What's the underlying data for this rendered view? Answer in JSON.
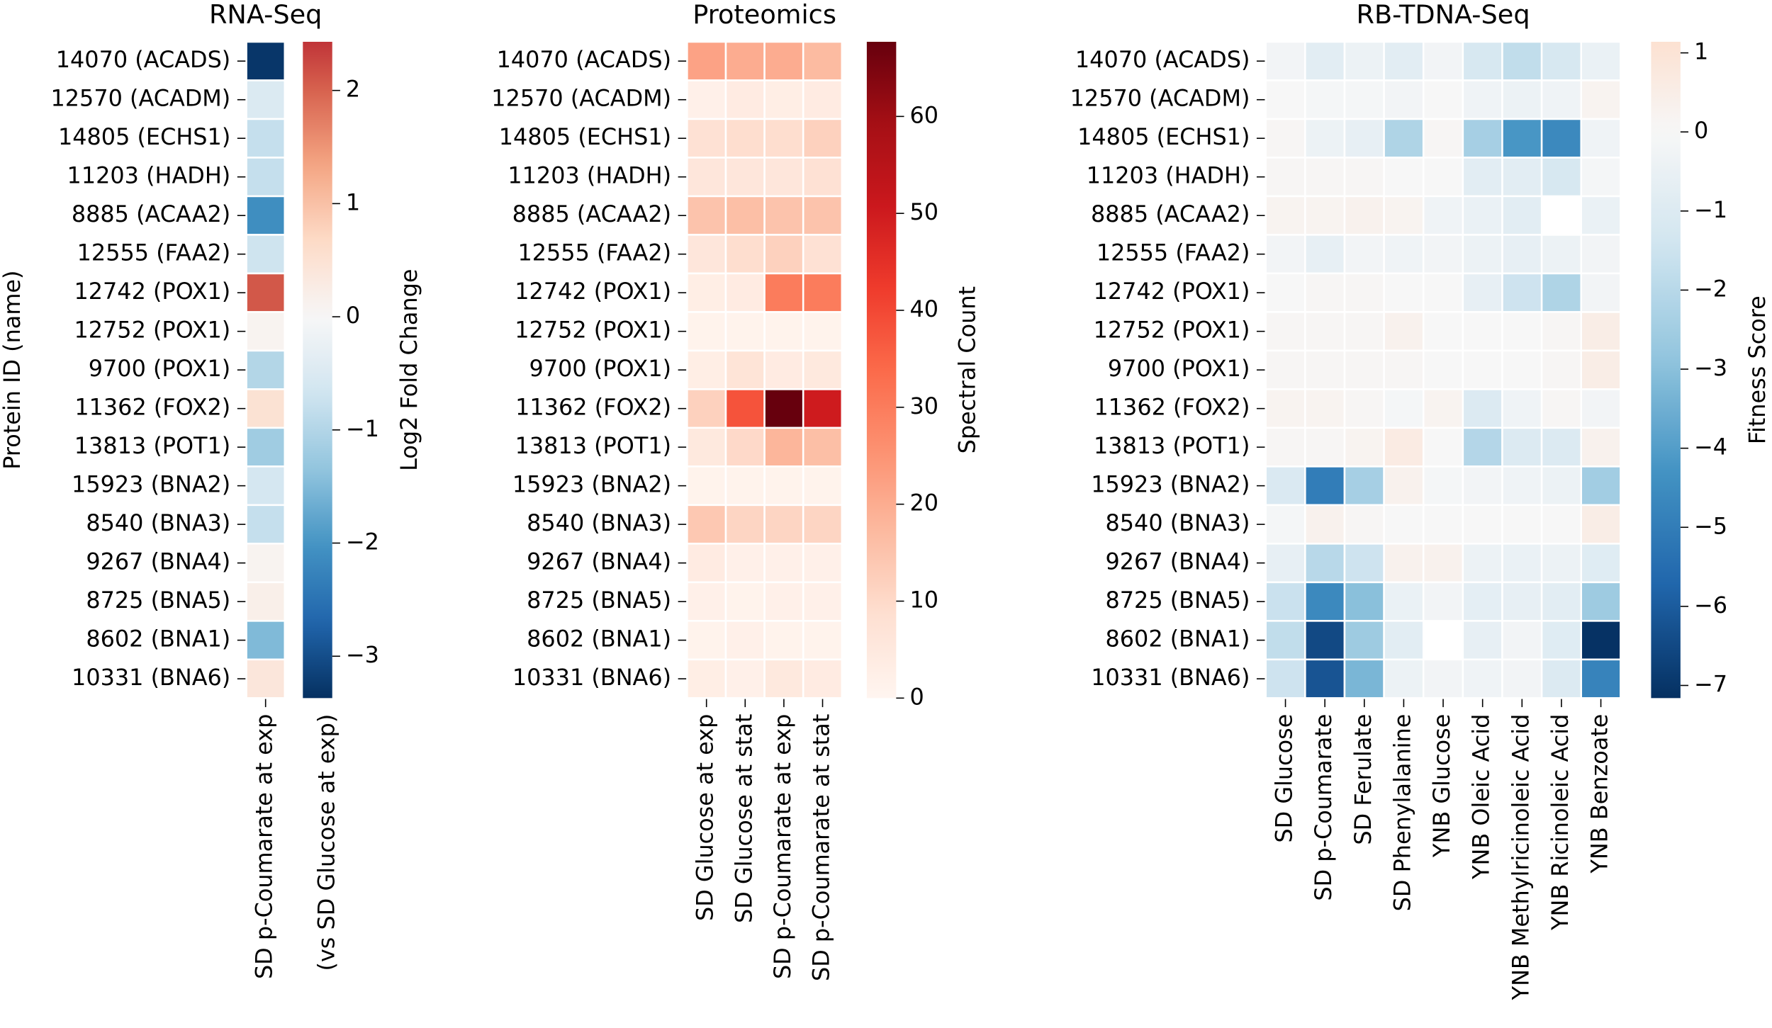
{
  "chart_data": [
    {
      "type": "heatmap",
      "title": "RNA-Seq",
      "ylabel": "Protein ID (name)",
      "rows": [
        "14070 (ACADS)",
        "12570 (ACADM)",
        "14805 (ECHS1)",
        "11203 (HADH)",
        "8885 (ACAA2)",
        "12555 (FAA2)",
        "12742 (POX1)",
        "12752 (POX1)",
        "9700 (POX1)",
        "11362 (FOX2)",
        "13813 (POT1)",
        "15923 (BNA2)",
        "8540 (BNA3)",
        "9267 (BNA4)",
        "8725 (BNA5)",
        "8602 (BNA1)",
        "10331 (BNA6)"
      ],
      "columns": [
        [
          "SD p-Coumarate at exp",
          "(vs SD Glucose at exp)"
        ]
      ],
      "values": [
        [
          -3.3
        ],
        [
          -0.5
        ],
        [
          -0.8
        ],
        [
          -0.8
        ],
        [
          -2.1
        ],
        [
          -0.7
        ],
        [
          2.1
        ],
        [
          0.1
        ],
        [
          -1.0
        ],
        [
          0.5
        ],
        [
          -1.2
        ],
        [
          -0.6
        ],
        [
          -0.8
        ],
        [
          0.1
        ],
        [
          0.2
        ],
        [
          -1.5
        ],
        [
          0.4
        ]
      ],
      "colormap": "RdBu_r",
      "center": 0,
      "clim": [
        -3.37,
        2.43
      ],
      "cticks": [
        {
          "value": -3,
          "label": "−3"
        },
        {
          "value": -2,
          "label": "−2"
        },
        {
          "value": -1,
          "label": "−1"
        },
        0,
        1,
        2
      ],
      "clabel": "Log2 Fold Change"
    },
    {
      "type": "heatmap",
      "title": "Proteomics",
      "rows": [
        "14070 (ACADS)",
        "12570 (ACADM)",
        "14805 (ECHS1)",
        "11203 (HADH)",
        "8885 (ACAA2)",
        "12555 (FAA2)",
        "12742 (POX1)",
        "12752 (POX1)",
        "9700 (POX1)",
        "11362 (FOX2)",
        "13813 (POT1)",
        "15923 (BNA2)",
        "8540 (BNA3)",
        "9267 (BNA4)",
        "8725 (BNA5)",
        "8602 (BNA1)",
        "10331 (BNA6)"
      ],
      "columns": [
        "SD Glucose at exp",
        "SD Glucose at stat",
        "SD p-Coumarate at exp",
        "SD p-Coumarate at stat"
      ],
      "values": [
        [
          22,
          20,
          20,
          17
        ],
        [
          2,
          4,
          3,
          4
        ],
        [
          8,
          9,
          9,
          12
        ],
        [
          6,
          6,
          6,
          8
        ],
        [
          15,
          16,
          15,
          15
        ],
        [
          6,
          9,
          12,
          8
        ],
        [
          3,
          4,
          30,
          30
        ],
        [
          1,
          1,
          1,
          1
        ],
        [
          3,
          7,
          4,
          5
        ],
        [
          12,
          38,
          68,
          50
        ],
        [
          5,
          10,
          18,
          16
        ],
        [
          1,
          1,
          1,
          1
        ],
        [
          14,
          11,
          11,
          11
        ],
        [
          4,
          2,
          2,
          2
        ],
        [
          2,
          1,
          2,
          2
        ],
        [
          1,
          2,
          1,
          1
        ],
        [
          3,
          2,
          5,
          4
        ]
      ],
      "colormap": "Reds",
      "clim": [
        0,
        67.7
      ],
      "cticks": [
        0,
        10,
        20,
        30,
        40,
        50,
        60
      ],
      "clabel": "Spectral Count"
    },
    {
      "type": "heatmap",
      "title": "RB-TDNA-Seq",
      "rows": [
        "14070 (ACADS)",
        "12570 (ACADM)",
        "14805 (ECHS1)",
        "11203 (HADH)",
        "8885 (ACAA2)",
        "12555 (FAA2)",
        "12742 (POX1)",
        "12752 (POX1)",
        "9700 (POX1)",
        "11362 (FOX2)",
        "13813 (POT1)",
        "15923 (BNA2)",
        "8540 (BNA3)",
        "9267 (BNA4)",
        "8725 (BNA5)",
        "8602 (BNA1)",
        "10331 (BNA6)"
      ],
      "columns": [
        "SD Glucose",
        "SD p-Coumarate",
        "SD Ferulate",
        "SD Phenylalanine",
        "YNB Glucose",
        "YNB Oleic Acid",
        "YNB Methylricinoleic Acid",
        "YNB Ricinoleic Acid",
        "YNB Benzoate"
      ],
      "values": [
        [
          -0.2,
          -0.8,
          -0.4,
          -0.8,
          -0.2,
          -1.2,
          -1.8,
          -1.2,
          -0.5
        ],
        [
          0,
          -0.1,
          -0.1,
          -0.2,
          0,
          -0.3,
          -0.4,
          -0.3,
          0.2
        ],
        [
          0.1,
          -0.4,
          -0.6,
          -2.2,
          0.1,
          -2.4,
          -4.2,
          -4.6,
          -0.3
        ],
        [
          0.1,
          0.1,
          0.1,
          0,
          0,
          -0.8,
          -0.8,
          -1.2,
          -0.1
        ],
        [
          0.2,
          0.2,
          0.3,
          0.2,
          -0.3,
          -0.5,
          -0.8,
          null,
          -0.5
        ],
        [
          -0.2,
          -0.6,
          -0.2,
          -0.3,
          -0.2,
          -0.4,
          -0.6,
          -0.4,
          -0.2
        ],
        [
          0,
          0.1,
          0.1,
          0,
          0,
          -0.6,
          -1.5,
          -2.2,
          -0.2
        ],
        [
          0.1,
          0.1,
          0.1,
          0.3,
          0,
          0,
          0,
          0.1,
          0.5
        ],
        [
          0.1,
          0.1,
          0.1,
          0.1,
          0,
          0,
          0,
          0.1,
          0.5
        ],
        [
          0.2,
          0.2,
          0.1,
          -0.1,
          0.2,
          -1.0,
          -0.3,
          0.1,
          -0.2
        ],
        [
          0.1,
          0.1,
          0.2,
          0.6,
          0,
          -2.1,
          -1.0,
          -1.0,
          0.3
        ],
        [
          -1.1,
          -5.0,
          -2.4,
          0.3,
          -0.1,
          -0.2,
          -0.3,
          -0.4,
          -2.5
        ],
        [
          -0.1,
          0.3,
          0.1,
          0,
          0,
          0,
          0,
          0,
          0.5
        ],
        [
          -0.6,
          -2.0,
          -1.5,
          0.3,
          0.3,
          -0.4,
          -0.5,
          -0.4,
          -0.9
        ],
        [
          -1.6,
          -4.6,
          -3.0,
          -0.5,
          -0.2,
          -0.7,
          -0.6,
          -0.8,
          -2.6
        ],
        [
          -1.8,
          -6.5,
          -2.6,
          -0.8,
          null,
          -0.6,
          -0.2,
          -0.9,
          -7.1
        ],
        [
          -1.5,
          -6.2,
          -3.3,
          -0.4,
          -0.2,
          -0.3,
          -0.2,
          -1.0,
          -4.8
        ]
      ],
      "colormap": "RdBu_r",
      "center": 0,
      "clim": [
        -7.16,
        1.14
      ],
      "cticks": [
        {
          "value": -7,
          "label": "−7"
        },
        {
          "value": -6,
          "label": "−6"
        },
        {
          "value": -5,
          "label": "−5"
        },
        {
          "value": -4,
          "label": "−4"
        },
        {
          "value": -3,
          "label": "−3"
        },
        {
          "value": -2,
          "label": "−2"
        },
        {
          "value": -1,
          "label": "−1"
        },
        0,
        1
      ],
      "clabel": "Fitness Score"
    }
  ]
}
